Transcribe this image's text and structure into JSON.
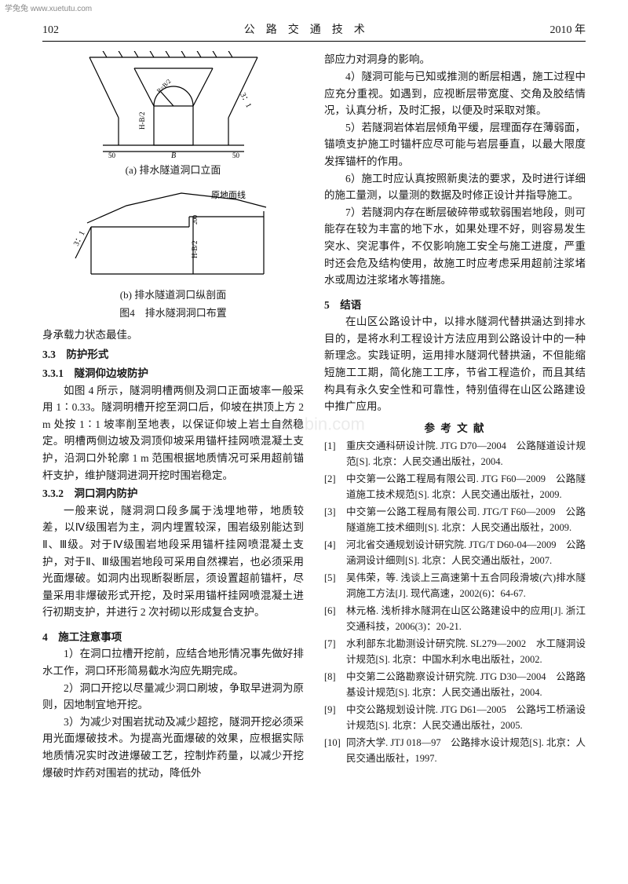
{
  "watermark_tl": "学兔兔 www.xuetutu.com",
  "watermark_center": "www.bin.com",
  "header": {
    "page_no": "102",
    "journal": "公　路　交　通　技　术",
    "year": "2010 年"
  },
  "figure4": {
    "a": {
      "caption": "(a) 排水隧道洞口立面",
      "labels": {
        "left_dim": "50",
        "right_dim": "50",
        "width": "B",
        "height": "H-B/2",
        "arch_r": "R=B/2",
        "slope": "3：1"
      },
      "style": {
        "stroke": "#000000",
        "stroke_width": 1.2
      }
    },
    "b": {
      "caption": "(b) 排水隧道洞口纵剖面",
      "labels": {
        "ground_line": "原地面线",
        "y_dim1": "200",
        "y_dim2": "H-B/2",
        "slope": "3：1"
      },
      "style": {
        "stroke": "#000000",
        "stroke_width": 1.2
      }
    },
    "main_caption": "图4　排水隧洞洞口布置"
  },
  "left": {
    "line1": "身承载力状态最佳。",
    "sec33": "3.3　防护形式",
    "sec331": "3.3.1　隧洞仰边坡防护",
    "p331": "如图 4 所示，隧洞明槽两侧及洞口正面坡率一般采用 1∶0.33。隧洞明槽开挖至洞口后，仰坡在拱顶上方 2 m 处按 1∶1 坡率削至地表，以保证仰坡上岩土自然稳定。明槽两侧边坡及洞顶仰坡采用锚杆挂网喷混凝土支护，沿洞口外轮廓 1 m 范围根据地质情况可采用超前锚杆支护，维护隧洞进洞开挖时围岩稳定。",
    "sec332": "3.3.2　洞口洞内防护",
    "p332": "一般来说，隧洞洞口段多属于浅埋地带，地质较差，以Ⅳ级围岩为主，洞内埋置较深，围岩级别能达到Ⅱ、Ⅲ级。对于Ⅳ级围岩地段采用锚杆挂网喷混凝土支护，对于Ⅱ、Ⅲ级围岩地段可采用自然裸岩，也必须采用光面爆破。如洞内出现断裂断层，须设置超前锚杆，尽量采用非爆破形式开挖，及时采用锚杆挂网喷混凝土进行初期支护，并进行 2 次衬砌以形成复合支护。",
    "sec4": "4　施工注意事项",
    "p4_1": "1）在洞口拉槽开挖前，应结合地形情况事先做好排水工作，洞口环形简易截水沟应先期完成。",
    "p4_2": "2）洞口开挖以尽量减少洞口刷坡，争取早进洞为原则，因地制宜地开挖。",
    "p4_3": "3）为减少对围岩扰动及减少超挖，隧洞开挖必须采用光面爆破技术。为提高光面爆破的效果，应根据实际地质情况实时改进爆破工艺，控制炸药量，以减少开挖爆破时炸药对围岩的扰动，降低外"
  },
  "right": {
    "p_top": "部应力对洞身的影响。",
    "p4": "4）隧洞可能与已知或推测的断层相遇，施工过程中应充分重视。如遇到，应视断层带宽度、交角及胶结情况，认真分析，及时汇报，以便及时采取对策。",
    "p5": "5）若隧洞岩体岩层倾角平缓，层理面存在薄弱面，锚喷支护施工时锚杆应尽可能与岩层垂直，以最大限度发挥锚杆的作用。",
    "p6": "6）施工时应认真按照新奥法的要求，及时进行详细的施工量测，以量测的数据及时修正设计并指导施工。",
    "p7": "7）若隧洞内存在断层破碎带或软弱围岩地段，则可能存在较为丰富的地下水，如果处理不好，则容易发生突水、突泥事件，不仅影响施工安全与施工进度，严重时还会危及结构使用，故施工时应考虑采用超前注浆堵水或周边注浆堵水等措施。",
    "sec5": "5　结语",
    "p5body": "在山区公路设计中，以排水隧洞代替拱涵达到排水目的，是将水利工程设计方法应用到公路设计中的一种新理念。实践证明，运用排水隧洞代替拱涵，不但能缩短施工工期，简化施工工序，节省工程造价，而且其结构具有永久安全性和可靠性，特别值得在山区公路建设中推广应用。",
    "ref_title": "参 考 文 献",
    "refs": [
      [
        "[1]",
        "重庆交通科研设计院. JTG D70—2004　公路隧道设计规范[S]. 北京：人民交通出版社，2004."
      ],
      [
        "[2]",
        "中交第一公路工程局有限公司. JTG F60—2009　公路隧道施工技术规范[S]. 北京：人民交通出版社，2009."
      ],
      [
        "[3]",
        "中交第一公路工程局有限公司. JTG/T F60—2009　公路隧道施工技术细则[S]. 北京：人民交通出版社，2009."
      ],
      [
        "[4]",
        "河北省交通规划设计研究院. JTG/T D60‑04—2009　公路涵洞设计细则[S]. 北京：人民交通出版社，2007."
      ],
      [
        "[5]",
        "吴伟荣，等. 浅谈上三高速第十五合同段滑坡(六)排水隧洞施工方法[J]. 现代高速，2002(6)：64‑67."
      ],
      [
        "[6]",
        "林元格. 浅析排水隧洞在山区公路建设中的应用[J]. 浙江交通科技，2006(3)：20‑21."
      ],
      [
        "[7]",
        "水利部东北勘测设计研究院. SL279—2002　水工隧洞设计规范[S]. 北京：中国水利水电出版社，2002."
      ],
      [
        "[8]",
        "中交第二公路勘察设计研究院. JTG D30—2004　公路路基设计规范[S]. 北京：人民交通出版社，2004."
      ],
      [
        "[9]",
        "中交公路规划设计院. JTG D61—2005　公路圬工桥涵设计规范[S]. 北京：人民交通出版社，2005."
      ],
      [
        "[10]",
        "同济大学. JTJ 018—97　公路排水设计规范[S]. 北京：人民交通出版社，1997."
      ]
    ]
  }
}
